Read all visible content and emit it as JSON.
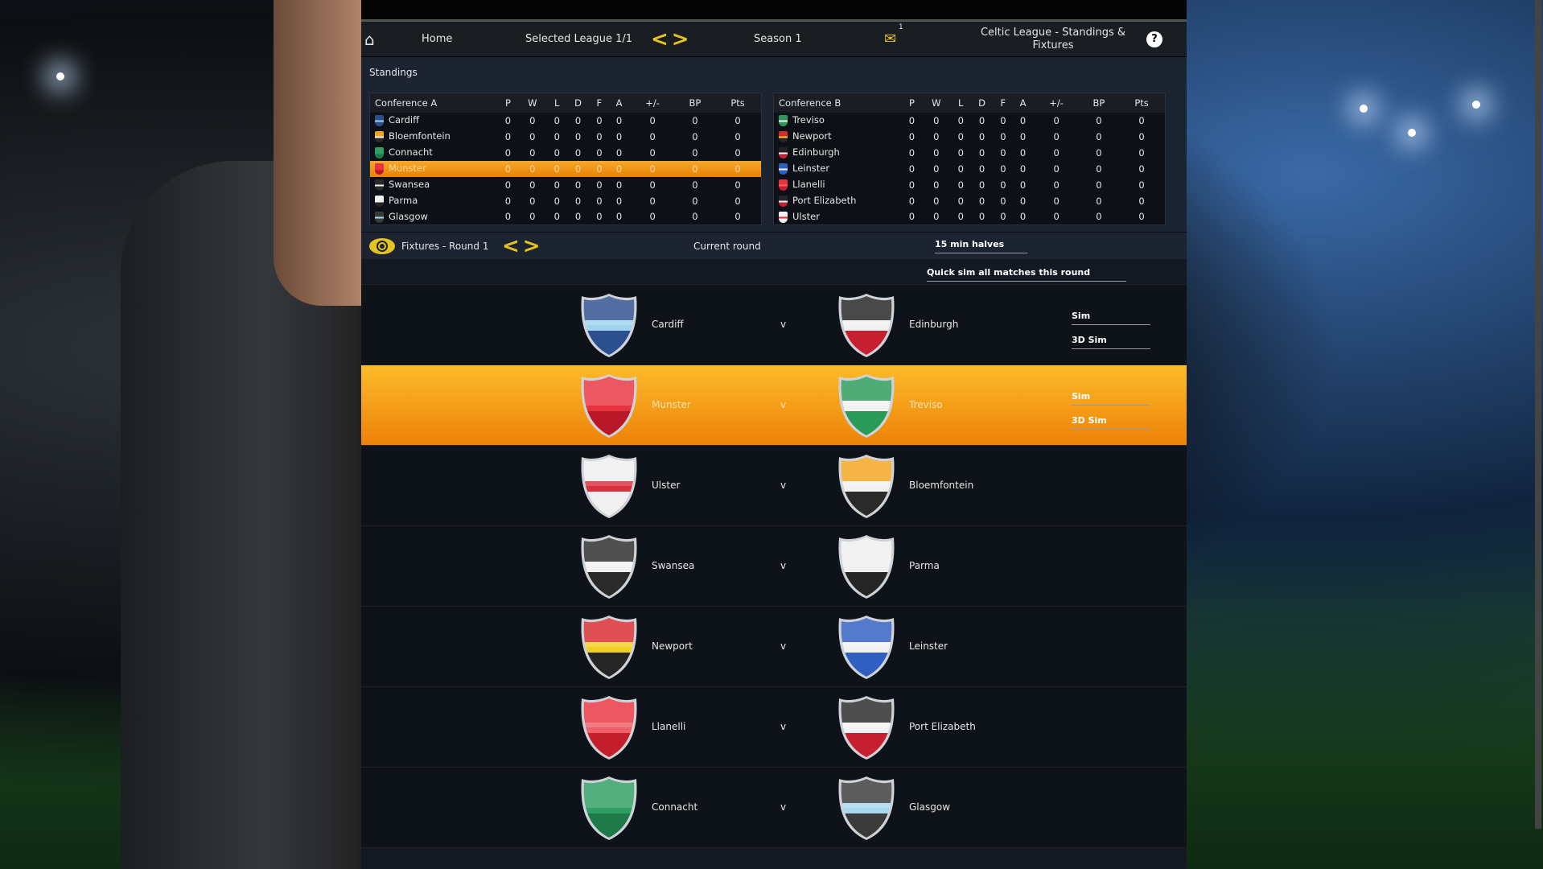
{
  "nav": {
    "home": "Home",
    "league": "Selected League 1/1",
    "season": "Season 1",
    "mail_count": "1",
    "title": "Celtic League - Standings & Fixtures"
  },
  "standings": {
    "label": "Standings",
    "columns": [
      "P",
      "W",
      "L",
      "D",
      "F",
      "A",
      "+/-",
      "BP",
      "Pts"
    ],
    "conference_a": {
      "name": "Conference A",
      "rows": [
        {
          "team": "Cardiff",
          "vals": [
            0,
            0,
            0,
            0,
            0,
            0,
            0,
            0,
            0
          ]
        },
        {
          "team": "Bloemfontein",
          "vals": [
            0,
            0,
            0,
            0,
            0,
            0,
            0,
            0,
            0
          ]
        },
        {
          "team": "Connacht",
          "vals": [
            0,
            0,
            0,
            0,
            0,
            0,
            0,
            0,
            0
          ]
        },
        {
          "team": "Munster",
          "vals": [
            0,
            0,
            0,
            0,
            0,
            0,
            0,
            0,
            0
          ],
          "selected": true
        },
        {
          "team": "Swansea",
          "vals": [
            0,
            0,
            0,
            0,
            0,
            0,
            0,
            0,
            0
          ]
        },
        {
          "team": "Parma",
          "vals": [
            0,
            0,
            0,
            0,
            0,
            0,
            0,
            0,
            0
          ]
        },
        {
          "team": "Glasgow",
          "vals": [
            0,
            0,
            0,
            0,
            0,
            0,
            0,
            0,
            0
          ]
        }
      ]
    },
    "conference_b": {
      "name": "Conference B",
      "rows": [
        {
          "team": "Treviso",
          "vals": [
            0,
            0,
            0,
            0,
            0,
            0,
            0,
            0,
            0
          ]
        },
        {
          "team": "Newport",
          "vals": [
            0,
            0,
            0,
            0,
            0,
            0,
            0,
            0,
            0
          ]
        },
        {
          "team": "Edinburgh",
          "vals": [
            0,
            0,
            0,
            0,
            0,
            0,
            0,
            0,
            0
          ]
        },
        {
          "team": "Leinster",
          "vals": [
            0,
            0,
            0,
            0,
            0,
            0,
            0,
            0,
            0
          ]
        },
        {
          "team": "Llanelli",
          "vals": [
            0,
            0,
            0,
            0,
            0,
            0,
            0,
            0,
            0
          ]
        },
        {
          "team": "Port Elizabeth",
          "vals": [
            0,
            0,
            0,
            0,
            0,
            0,
            0,
            0,
            0
          ]
        },
        {
          "team": "Ulster",
          "vals": [
            0,
            0,
            0,
            0,
            0,
            0,
            0,
            0,
            0
          ]
        }
      ]
    }
  },
  "fixtures": {
    "label": "Fixtures - Round 1",
    "current_round": "Current round",
    "halves": "15 min halves",
    "quick_sim": "Quick sim all matches this round",
    "vs": "v",
    "sim": "Sim",
    "sim3d": "3D Sim",
    "matches": [
      {
        "home": "Cardiff",
        "away": "Edinburgh",
        "sim_buttons": true
      },
      {
        "home": "Munster",
        "away": "Treviso",
        "sim_buttons": true,
        "selected": true
      },
      {
        "home": "Ulster",
        "away": "Bloemfontein"
      },
      {
        "home": "Swansea",
        "away": "Parma"
      },
      {
        "home": "Newport",
        "away": "Leinster"
      },
      {
        "home": "Llanelli",
        "away": "Port Elizabeth"
      },
      {
        "home": "Connacht",
        "away": "Glasgow"
      }
    ]
  },
  "team_colors": {
    "Cardiff": [
      "#2c4f8e",
      "#9fd3ee",
      "#2c4f8e"
    ],
    "Edinburgh": [
      "#222222",
      "#f2f2f2",
      "#c62030"
    ],
    "Munster": [
      "#e8323f",
      "#e8323f",
      "#b81828"
    ],
    "Treviso": [
      "#2a9a58",
      "#f2f2f2",
      "#2a9a58"
    ],
    "Ulster": [
      "#f0f0f0",
      "#d8303c",
      "#f0f0f0"
    ],
    "Bloemfontein": [
      "#f3a41e",
      "#f2f2f2",
      "#2a2a2a"
    ],
    "Swansea": [
      "#2a2a2a",
      "#f2f2f2",
      "#2a2a2a"
    ],
    "Parma": [
      "#f0f0f0",
      "#f0f0f0",
      "#262626"
    ],
    "Newport": [
      "#d82a30",
      "#f0d020",
      "#262626"
    ],
    "Leinster": [
      "#2f5fc0",
      "#f2f2f2",
      "#2f5fc0"
    ],
    "Llanelli": [
      "#e8323f",
      "#f06068",
      "#c41e2c"
    ],
    "Port Elizabeth": [
      "#262626",
      "#f2f2f2",
      "#c62030"
    ],
    "Connacht": [
      "#2e9e62",
      "#2e9e62",
      "#1e7a48"
    ],
    "Glasgow": [
      "#3a3a3a",
      "#a8d8ef",
      "#3a3a3a"
    ]
  },
  "colors": {
    "accent": "#e3c323",
    "highlight": "#f39a17"
  }
}
